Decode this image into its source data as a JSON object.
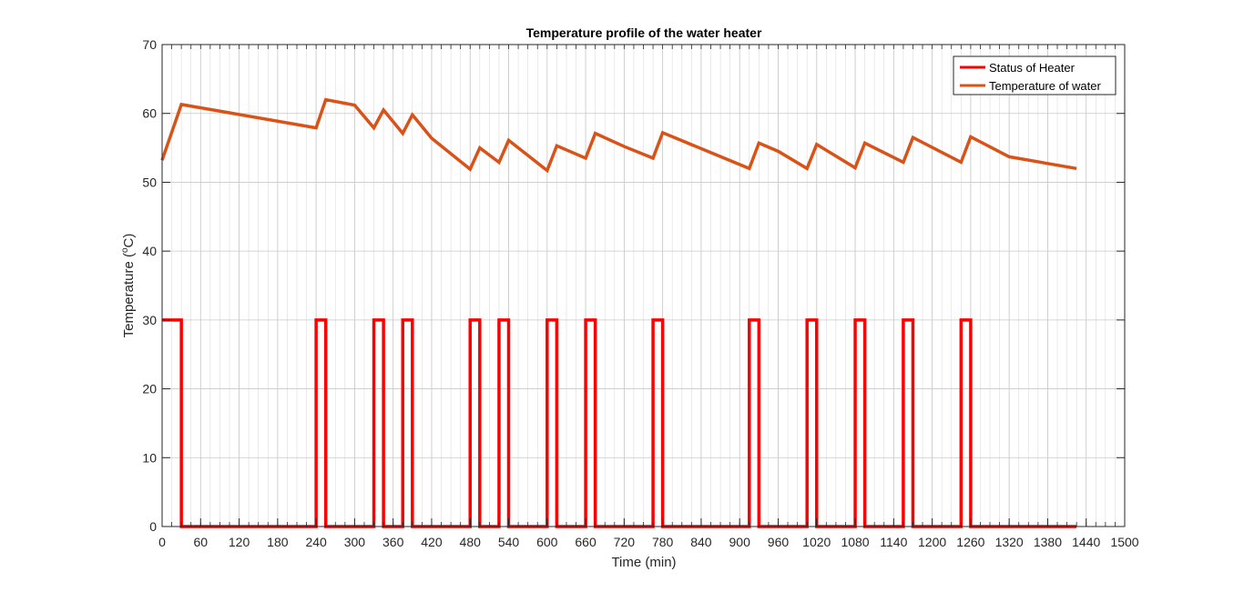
{
  "chart_data": {
    "type": "line",
    "title": "Temperature profile of the water heater",
    "xlabel": "Time (min)",
    "ylabel_main": "Temperature (",
    "ylabel_sup": "o",
    "ylabel_end": "C)",
    "xlim": [
      0,
      1500
    ],
    "ylim": [
      0,
      70
    ],
    "x_major_ticks": [
      0,
      60,
      120,
      180,
      240,
      300,
      360,
      420,
      480,
      540,
      600,
      660,
      720,
      780,
      840,
      900,
      960,
      1020,
      1080,
      1140,
      1200,
      1260,
      1320,
      1380,
      1440,
      1500
    ],
    "y_ticks": [
      0,
      10,
      20,
      30,
      40,
      50,
      60,
      70
    ],
    "x_minor_step": 15,
    "grid": true,
    "legend_position": "top-right",
    "series": [
      {
        "name": "Status of Heater",
        "color": "#ff0000",
        "points": [
          [
            0,
            30
          ],
          [
            30,
            30
          ],
          [
            30,
            0
          ],
          [
            240,
            0
          ],
          [
            240,
            30
          ],
          [
            255,
            30
          ],
          [
            255,
            0
          ],
          [
            330,
            0
          ],
          [
            330,
            30
          ],
          [
            345,
            30
          ],
          [
            345,
            0
          ],
          [
            375,
            0
          ],
          [
            375,
            30
          ],
          [
            390,
            30
          ],
          [
            390,
            0
          ],
          [
            480,
            0
          ],
          [
            480,
            30
          ],
          [
            495,
            30
          ],
          [
            495,
            0
          ],
          [
            525,
            0
          ],
          [
            525,
            30
          ],
          [
            540,
            30
          ],
          [
            540,
            0
          ],
          [
            600,
            0
          ],
          [
            600,
            30
          ],
          [
            615,
            30
          ],
          [
            615,
            0
          ],
          [
            660,
            0
          ],
          [
            660,
            30
          ],
          [
            675,
            30
          ],
          [
            675,
            0
          ],
          [
            765,
            0
          ],
          [
            765,
            30
          ],
          [
            780,
            30
          ],
          [
            780,
            0
          ],
          [
            915,
            0
          ],
          [
            915,
            30
          ],
          [
            930,
            30
          ],
          [
            930,
            0
          ],
          [
            1005,
            0
          ],
          [
            1005,
            30
          ],
          [
            1020,
            30
          ],
          [
            1020,
            0
          ],
          [
            1080,
            0
          ],
          [
            1080,
            30
          ],
          [
            1095,
            30
          ],
          [
            1095,
            0
          ],
          [
            1155,
            0
          ],
          [
            1155,
            30
          ],
          [
            1170,
            30
          ],
          [
            1170,
            0
          ],
          [
            1245,
            0
          ],
          [
            1245,
            30
          ],
          [
            1260,
            30
          ],
          [
            1260,
            0
          ],
          [
            1425,
            0
          ]
        ]
      },
      {
        "name": "Temperature of water",
        "color": "#d95319",
        "points": [
          [
            0,
            53.2
          ],
          [
            30,
            61.3
          ],
          [
            240,
            57.9
          ],
          [
            255,
            62.0
          ],
          [
            300,
            61.2
          ],
          [
            330,
            57.9
          ],
          [
            345,
            60.5
          ],
          [
            375,
            57.1
          ],
          [
            390,
            59.8
          ],
          [
            420,
            56.4
          ],
          [
            480,
            51.9
          ],
          [
            495,
            55.0
          ],
          [
            525,
            52.9
          ],
          [
            540,
            56.1
          ],
          [
            600,
            51.7
          ],
          [
            615,
            55.3
          ],
          [
            660,
            53.5
          ],
          [
            675,
            57.1
          ],
          [
            720,
            55.2
          ],
          [
            765,
            53.5
          ],
          [
            780,
            57.2
          ],
          [
            915,
            52.0
          ],
          [
            930,
            55.7
          ],
          [
            960,
            54.5
          ],
          [
            1005,
            52.0
          ],
          [
            1020,
            55.5
          ],
          [
            1080,
            52.1
          ],
          [
            1095,
            55.7
          ],
          [
            1155,
            52.9
          ],
          [
            1170,
            56.5
          ],
          [
            1245,
            52.9
          ],
          [
            1260,
            56.6
          ],
          [
            1320,
            53.7
          ],
          [
            1425,
            52.0
          ]
        ]
      }
    ]
  }
}
